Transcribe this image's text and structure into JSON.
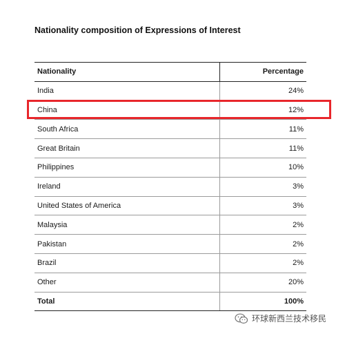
{
  "document": {
    "title": "Nationality composition of Expressions of Interest"
  },
  "table": {
    "headers": [
      "Nationality",
      "Percentage"
    ],
    "rows": [
      {
        "nationality": "India",
        "percentage": "24%"
      },
      {
        "nationality": "China",
        "percentage": "12%"
      },
      {
        "nationality": "South Africa",
        "percentage": "11%"
      },
      {
        "nationality": "Great Britain",
        "percentage": "11%"
      },
      {
        "nationality": "Philippines",
        "percentage": "10%"
      },
      {
        "nationality": "Ireland",
        "percentage": "3%"
      },
      {
        "nationality": "United States of America",
        "percentage": "3%"
      },
      {
        "nationality": "Malaysia",
        "percentage": "2%"
      },
      {
        "nationality": "Pakistan",
        "percentage": "2%"
      },
      {
        "nationality": "Brazil",
        "percentage": "2%"
      },
      {
        "nationality": "Other",
        "percentage": "20%"
      }
    ],
    "total": {
      "label": "Total",
      "percentage": "100%"
    }
  },
  "highlight": {
    "row": "China",
    "color": "#e8262b"
  },
  "watermark": {
    "icon": "wechat-icon",
    "text": "环球新西兰技术移民"
  }
}
